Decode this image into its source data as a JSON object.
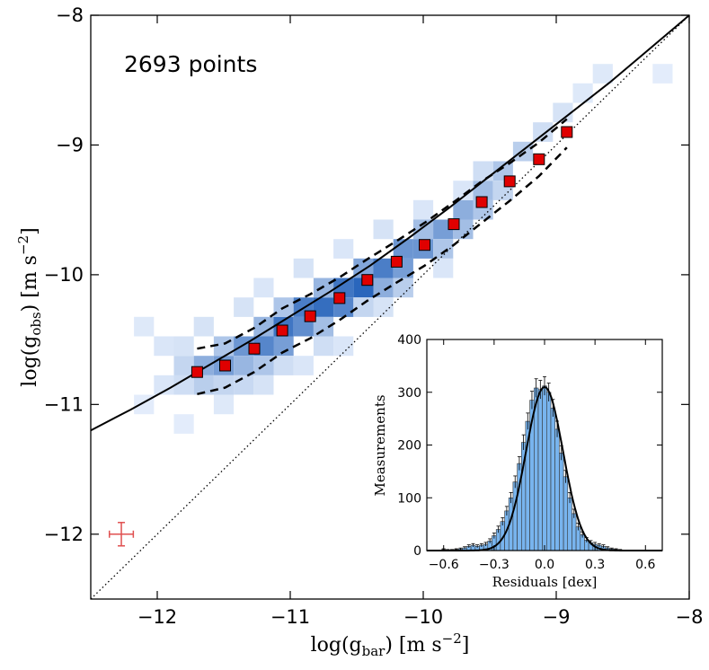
{
  "chart_data": [
    {
      "type": "scatter",
      "title": "",
      "annotation": "2693 points",
      "xlabel_main": "log(g",
      "xlabel_sub": "bar",
      "xlabel_unit": ") [m s",
      "xlabel_exp": "−2",
      "xlabel_close": "]",
      "ylabel_main": "log(g",
      "ylabel_sub": "obs",
      "ylabel_unit": ") [m s",
      "ylabel_exp": "−2",
      "ylabel_close": "]",
      "xlim": [
        -12.5,
        -8
      ],
      "ylim": [
        -12.5,
        -8
      ],
      "xticks": [
        -12,
        -11,
        -10,
        -9,
        -8
      ],
      "xtick_labels": [
        "−12",
        "−11",
        "−10",
        "−9",
        "−8"
      ],
      "yticks": [
        -12,
        -11,
        -10,
        -9,
        -8
      ],
      "ytick_labels": [
        "−12",
        "−11",
        "−10",
        "−9",
        "−8"
      ],
      "binned_means": {
        "name": "binned means",
        "color": "#e00000",
        "x": [
          -11.7,
          -11.49,
          -11.27,
          -11.06,
          -10.85,
          -10.63,
          -10.42,
          -10.2,
          -9.99,
          -9.77,
          -9.56,
          -9.35,
          -9.13,
          -8.92
        ],
        "y": [
          -10.75,
          -10.7,
          -10.57,
          -10.43,
          -10.32,
          -10.18,
          -10.04,
          -9.9,
          -9.77,
          -9.61,
          -9.44,
          -9.28,
          -9.11,
          -8.9
        ]
      },
      "fit_line": {
        "name": "fit",
        "x": [
          -12.5,
          -12.2,
          -11.9,
          -11.6,
          -11.3,
          -11.0,
          -10.7,
          -10.4,
          -10.1,
          -9.8,
          -9.5,
          -9.2,
          -8.9,
          -8.6,
          -8.3,
          -8.0
        ],
        "y": [
          -11.2,
          -11.04,
          -10.87,
          -10.69,
          -10.51,
          -10.32,
          -10.13,
          -9.93,
          -9.71,
          -9.48,
          -9.24,
          -9.0,
          -8.76,
          -8.52,
          -8.26,
          -8.0
        ]
      },
      "band_upper": {
        "name": "upper scatter",
        "x": [
          -11.7,
          -11.49,
          -11.27,
          -11.06,
          -10.85,
          -10.63,
          -10.42,
          -10.2,
          -9.99,
          -9.77,
          -9.56,
          -9.35,
          -9.13,
          -8.92
        ],
        "y": [
          -10.57,
          -10.53,
          -10.41,
          -10.26,
          -10.15,
          -10.02,
          -9.88,
          -9.74,
          -9.6,
          -9.44,
          -9.28,
          -9.14,
          -8.98,
          -8.8
        ]
      },
      "band_lower": {
        "name": "lower scatter",
        "x": [
          -11.7,
          -11.49,
          -11.27,
          -11.06,
          -10.85,
          -10.63,
          -10.42,
          -10.2,
          -9.99,
          -9.77,
          -9.56,
          -9.35,
          -9.13,
          -8.92
        ],
        "y": [
          -10.92,
          -10.87,
          -10.75,
          -10.6,
          -10.49,
          -10.35,
          -10.2,
          -10.06,
          -9.93,
          -9.77,
          -9.6,
          -9.43,
          -9.24,
          -9.02
        ]
      },
      "one_to_one": {
        "name": "1:1 line",
        "x": [
          -12.5,
          -8
        ],
        "y": [
          -12.5,
          -8
        ]
      },
      "error_bar": {
        "name": "typical uncertainty",
        "color": "#e05050",
        "x": -12.27,
        "y": -12.0,
        "xerr": 0.09,
        "yerr": 0.09
      },
      "density_bins": {
        "name": "point density",
        "bin_size": 0.15,
        "cells": [
          [
            -11.95,
            -10.85,
            0.1
          ],
          [
            -11.8,
            -10.85,
            0.15
          ],
          [
            -11.8,
            -10.7,
            0.2
          ],
          [
            -11.65,
            -10.7,
            0.45
          ],
          [
            -11.65,
            -10.85,
            0.25
          ],
          [
            -11.5,
            -10.7,
            0.55
          ],
          [
            -11.5,
            -10.55,
            0.3
          ],
          [
            -11.5,
            -10.85,
            0.2
          ],
          [
            -11.35,
            -10.55,
            0.6
          ],
          [
            -11.35,
            -10.7,
            0.4
          ],
          [
            -11.2,
            -10.55,
            0.7
          ],
          [
            -11.2,
            -10.4,
            0.4
          ],
          [
            -11.2,
            -10.7,
            0.3
          ],
          [
            -11.05,
            -10.4,
            0.8
          ],
          [
            -11.05,
            -10.55,
            0.55
          ],
          [
            -11.05,
            -10.25,
            0.3
          ],
          [
            -10.9,
            -10.25,
            0.75
          ],
          [
            -10.9,
            -10.4,
            0.65
          ],
          [
            -10.75,
            -10.25,
            0.85
          ],
          [
            -10.75,
            -10.1,
            0.4
          ],
          [
            -10.75,
            -10.4,
            0.35
          ],
          [
            -10.6,
            -10.1,
            0.8
          ],
          [
            -10.6,
            -10.25,
            0.7
          ],
          [
            -10.45,
            -10.1,
            0.9
          ],
          [
            -10.45,
            -9.95,
            0.5
          ],
          [
            -10.3,
            -9.95,
            0.75
          ],
          [
            -10.3,
            -10.1,
            0.45
          ],
          [
            -10.15,
            -9.8,
            0.6
          ],
          [
            -10.15,
            -9.95,
            0.55
          ],
          [
            -10.0,
            -9.8,
            0.6
          ],
          [
            -10.0,
            -9.65,
            0.35
          ],
          [
            -9.85,
            -9.65,
            0.55
          ],
          [
            -9.85,
            -9.8,
            0.3
          ],
          [
            -9.7,
            -9.5,
            0.45
          ],
          [
            -9.7,
            -9.65,
            0.35
          ],
          [
            -9.55,
            -9.35,
            0.35
          ],
          [
            -9.55,
            -9.5,
            0.3
          ],
          [
            -9.4,
            -9.2,
            0.3
          ],
          [
            -9.4,
            -9.35,
            0.2
          ],
          [
            -9.25,
            -9.05,
            0.25
          ],
          [
            -9.1,
            -8.9,
            0.15
          ],
          [
            -8.95,
            -8.75,
            0.12
          ],
          [
            -11.95,
            -10.55,
            0.1
          ],
          [
            -11.8,
            -10.55,
            0.12
          ],
          [
            -12.1,
            -10.4,
            0.08
          ],
          [
            -11.65,
            -10.4,
            0.12
          ],
          [
            -11.35,
            -10.25,
            0.12
          ],
          [
            -11.2,
            -10.1,
            0.1
          ],
          [
            -10.9,
            -9.95,
            0.12
          ],
          [
            -10.6,
            -9.8,
            0.1
          ],
          [
            -10.3,
            -9.65,
            0.12
          ],
          [
            -10.0,
            -9.5,
            0.1
          ],
          [
            -9.7,
            -9.35,
            0.1
          ],
          [
            -11.5,
            -11.0,
            0.08
          ],
          [
            -11.2,
            -10.85,
            0.12
          ],
          [
            -10.9,
            -10.7,
            0.1
          ],
          [
            -10.6,
            -10.55,
            0.1
          ],
          [
            -10.3,
            -10.25,
            0.12
          ],
          [
            -9.85,
            -9.95,
            0.1
          ],
          [
            -8.8,
            -8.6,
            0.08
          ],
          [
            -8.65,
            -8.45,
            0.08
          ],
          [
            -8.2,
            -8.45,
            0.06
          ],
          [
            -12.1,
            -11.0,
            0.06
          ],
          [
            -11.8,
            -11.15,
            0.06
          ],
          [
            -11.35,
            -10.85,
            0.18
          ],
          [
            -11.05,
            -10.7,
            0.15
          ],
          [
            -10.75,
            -10.55,
            0.15
          ],
          [
            -10.45,
            -10.25,
            0.2
          ],
          [
            -10.15,
            -10.1,
            0.25
          ],
          [
            -9.55,
            -9.2,
            0.15
          ]
        ]
      }
    },
    {
      "type": "bar",
      "name": "residuals histogram",
      "xlabel": "Residuals [dex]",
      "ylabel": "Measurements",
      "xlim": [
        -0.7,
        0.7
      ],
      "ylim": [
        0,
        400
      ],
      "xticks": [
        -0.6,
        -0.3,
        0.0,
        0.3,
        0.6
      ],
      "xtick_labels": [
        "−0.6",
        "−0.3",
        "0.0",
        "0.3",
        "0.6"
      ],
      "yticks": [
        0,
        100,
        200,
        300,
        400
      ],
      "ytick_labels": [
        "0",
        "100",
        "200",
        "300",
        "400"
      ],
      "bar_color": "#78b4ee",
      "bin_width": 0.025,
      "bin_centers": [
        -0.6,
        -0.575,
        -0.55,
        -0.525,
        -0.5,
        -0.475,
        -0.45,
        -0.425,
        -0.4,
        -0.375,
        -0.35,
        -0.325,
        -0.3,
        -0.275,
        -0.25,
        -0.225,
        -0.2,
        -0.175,
        -0.15,
        -0.125,
        -0.1,
        -0.075,
        -0.05,
        -0.025,
        0.0,
        0.025,
        0.05,
        0.075,
        0.1,
        0.125,
        0.15,
        0.175,
        0.2,
        0.225,
        0.25,
        0.275,
        0.3,
        0.325,
        0.35,
        0.375,
        0.4,
        0.425,
        0.45
      ],
      "values": [
        2,
        1,
        1,
        2,
        3,
        5,
        8,
        10,
        8,
        10,
        12,
        18,
        28,
        40,
        55,
        75,
        100,
        130,
        165,
        205,
        245,
        285,
        308,
        305,
        312,
        300,
        270,
        230,
        185,
        140,
        100,
        70,
        45,
        30,
        20,
        15,
        12,
        10,
        8,
        5,
        3,
        2,
        1
      ],
      "gaussian_fit": {
        "name": "gaussian fit",
        "amplitude": 310,
        "mean": 0.0,
        "sigma": 0.11
      }
    }
  ]
}
